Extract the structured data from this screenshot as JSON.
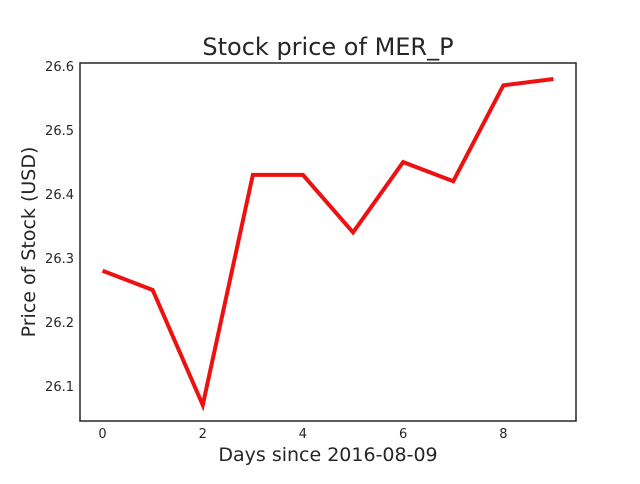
{
  "chart_data": {
    "type": "line",
    "title": "Stock price of MER_P",
    "xlabel": "Days since 2016-08-09",
    "ylabel": "Price of Stock (USD)",
    "x": [
      0,
      1,
      2,
      3,
      4,
      5,
      6,
      7,
      8,
      9
    ],
    "series": [
      {
        "values": [
          26.28,
          26.25,
          26.07,
          26.43,
          26.43,
          26.34,
          26.45,
          26.42,
          26.57,
          26.58
        ],
        "color": "#ee1111"
      }
    ],
    "xlim": [
      -0.45,
      9.45
    ],
    "ylim": [
      26.045,
      26.605
    ],
    "xticks": [
      0,
      2,
      4,
      6,
      8
    ],
    "xtick_labels": [
      "0",
      "2",
      "4",
      "6",
      "8"
    ],
    "yticks": [
      26.1,
      26.2,
      26.3,
      26.4,
      26.5,
      26.6
    ],
    "ytick_labels": [
      "26.1",
      "26.2",
      "26.3",
      "26.4",
      "26.5",
      "26.6"
    ],
    "grid": false,
    "legend": "none"
  }
}
